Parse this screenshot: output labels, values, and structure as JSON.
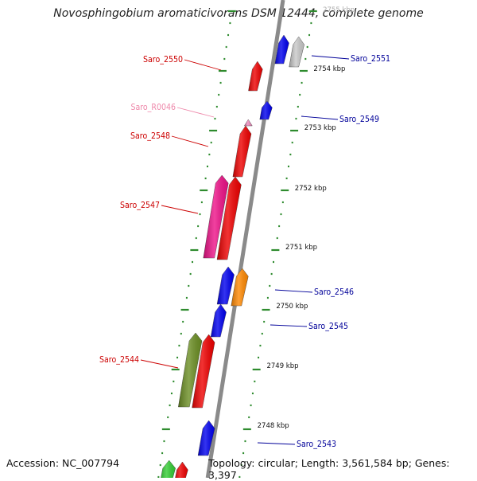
{
  "title": "Novosphingobium aromaticivorans DSM 12444, complete genome",
  "footer": {
    "accession": "Accession: NC_007794",
    "summary": "Topology: circular; Length: 3,561,584 bp; Genes: 3,397"
  },
  "colors": {
    "backbone": "#8a8a8a",
    "tick": "#2e8b2e",
    "left_label": "#cc0000",
    "right_label": "#000099",
    "rna_label": "#ee88aa",
    "ruler_text": "#111111"
  },
  "ruler": {
    "unit": "kbp",
    "ticks": [
      2748,
      2749,
      2750,
      2751,
      2752,
      2753,
      2754,
      2755
    ]
  },
  "genes": [
    {
      "id": "Saro_2551",
      "label": "Saro_2551",
      "strand": "+",
      "color": "#0000ee",
      "lane": 0
    },
    {
      "id": "Saro_2551b",
      "label": "",
      "strand": "+",
      "color": "#c8c8c8",
      "lane": 1
    },
    {
      "id": "Saro_2550",
      "label": "Saro_2550",
      "strand": "-",
      "color": "#ee0000",
      "lane": 0
    },
    {
      "id": "Saro_2549",
      "label": "Saro_2549",
      "strand": "+",
      "color": "#0000ee",
      "lane": 0
    },
    {
      "id": "Saro_R0046",
      "label": "Saro_R0046",
      "strand": "-",
      "color": "#ee88bb",
      "lane": 0
    },
    {
      "id": "Saro_2548",
      "label": "Saro_2548",
      "strand": "-",
      "color": "#ee0000",
      "lane": 0
    },
    {
      "id": "Saro_2547",
      "label": "Saro_2547",
      "strand": "-",
      "color": "#ee0000",
      "lane": 0
    },
    {
      "id": "Saro_2547b",
      "label": "",
      "strand": "-",
      "color": "#ee1188",
      "lane": 1
    },
    {
      "id": "Saro_2546",
      "label": "Saro_2546",
      "strand": "+",
      "color": "#ff8800",
      "lane": 1
    },
    {
      "id": "Saro_2546b",
      "label": "",
      "strand": "+",
      "color": "#0000ee",
      "lane": 0
    },
    {
      "id": "Saro_2545",
      "label": "Saro_2545",
      "strand": "+",
      "color": "#0000ee",
      "lane": 0
    },
    {
      "id": "Saro_2544",
      "label": "Saro_2544",
      "strand": "-",
      "color": "#ee0000",
      "lane": 0
    },
    {
      "id": "Saro_2544b",
      "label": "",
      "strand": "-",
      "color": "#6b8e23",
      "lane": 1
    },
    {
      "id": "Saro_2543",
      "label": "Saro_2543",
      "strand": "+",
      "color": "#0000ee",
      "lane": 0
    },
    {
      "id": "Saro_2542",
      "label": "",
      "strand": "-",
      "color": "#ee0000",
      "lane": 0
    },
    {
      "id": "Saro_2542b",
      "label": "",
      "strand": "-",
      "color": "#33cc33",
      "lane": 1
    }
  ]
}
